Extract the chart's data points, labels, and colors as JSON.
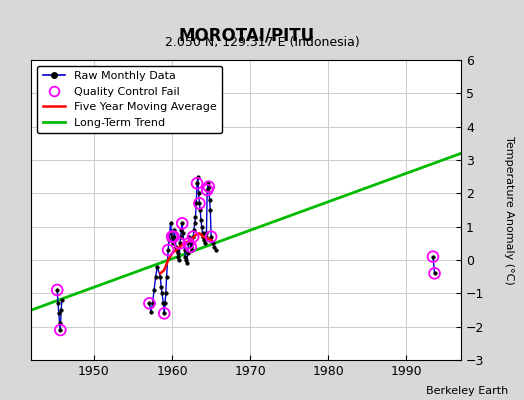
{
  "title": "MOROTAI/PITU",
  "subtitle": "2.050 N, 129.317 E (Indonesia)",
  "ylabel": "Temperature Anomaly (°C)",
  "credit": "Berkeley Earth",
  "xlim": [
    1942,
    1997
  ],
  "ylim": [
    -3,
    6
  ],
  "yticks": [
    -3,
    -2,
    -1,
    0,
    1,
    2,
    3,
    4,
    5,
    6
  ],
  "xticks": [
    1950,
    1960,
    1970,
    1980,
    1990
  ],
  "background_color": "#d8d8d8",
  "plot_bg_color": "#ffffff",
  "raw_data": [
    [
      1945.3,
      -0.9
    ],
    [
      1945.4,
      -1.3
    ],
    [
      1945.5,
      -1.6
    ],
    [
      1945.6,
      -1.9
    ],
    [
      1945.7,
      -2.1
    ],
    [
      1945.8,
      -1.5
    ],
    [
      1945.9,
      -1.2
    ],
    [
      1957.1,
      -1.3
    ],
    [
      1957.3,
      -1.55
    ],
    [
      1957.5,
      -1.3
    ],
    [
      1957.7,
      -0.9
    ],
    [
      1957.9,
      -0.5
    ],
    [
      1958.1,
      -0.2
    ],
    [
      1958.5,
      -0.5
    ],
    [
      1958.6,
      -0.8
    ],
    [
      1958.7,
      -1.0
    ],
    [
      1958.9,
      -1.3
    ],
    [
      1959.0,
      -1.6
    ],
    [
      1959.1,
      -1.3
    ],
    [
      1959.2,
      -1.0
    ],
    [
      1959.3,
      -0.5
    ],
    [
      1959.5,
      0.3
    ],
    [
      1959.6,
      0.6
    ],
    [
      1959.7,
      0.8
    ],
    [
      1959.8,
      1.1
    ],
    [
      1960.0,
      0.7
    ],
    [
      1960.1,
      0.5
    ],
    [
      1960.2,
      0.7
    ],
    [
      1960.3,
      0.9
    ],
    [
      1960.4,
      0.6
    ],
    [
      1960.5,
      0.4
    ],
    [
      1960.6,
      0.3
    ],
    [
      1960.7,
      0.2
    ],
    [
      1960.8,
      0.1
    ],
    [
      1960.9,
      0.0
    ],
    [
      1961.0,
      0.5
    ],
    [
      1961.1,
      0.7
    ],
    [
      1961.2,
      0.9
    ],
    [
      1961.3,
      1.1
    ],
    [
      1961.4,
      0.8
    ],
    [
      1961.5,
      0.5
    ],
    [
      1961.6,
      0.3
    ],
    [
      1961.7,
      0.1
    ],
    [
      1961.8,
      0.0
    ],
    [
      1961.9,
      -0.1
    ],
    [
      1962.0,
      0.2
    ],
    [
      1962.1,
      0.5
    ],
    [
      1962.2,
      0.7
    ],
    [
      1962.3,
      0.6
    ],
    [
      1962.4,
      0.4
    ],
    [
      1962.5,
      0.3
    ],
    [
      1962.6,
      0.5
    ],
    [
      1962.7,
      0.7
    ],
    [
      1962.8,
      0.9
    ],
    [
      1962.9,
      1.1
    ],
    [
      1963.0,
      1.3
    ],
    [
      1963.1,
      1.7
    ],
    [
      1963.2,
      2.3
    ],
    [
      1963.3,
      2.5
    ],
    [
      1963.4,
      2.0
    ],
    [
      1963.5,
      1.7
    ],
    [
      1963.6,
      1.5
    ],
    [
      1963.7,
      1.2
    ],
    [
      1963.8,
      1.0
    ],
    [
      1963.9,
      0.8
    ],
    [
      1964.0,
      0.7
    ],
    [
      1964.1,
      0.6
    ],
    [
      1964.2,
      0.5
    ],
    [
      1964.3,
      0.7
    ],
    [
      1964.4,
      0.8
    ],
    [
      1964.5,
      2.1
    ],
    [
      1964.6,
      2.3
    ],
    [
      1964.7,
      2.2
    ],
    [
      1964.8,
      1.8
    ],
    [
      1964.9,
      1.5
    ],
    [
      1965.0,
      0.7
    ],
    [
      1965.2,
      0.5
    ],
    [
      1965.4,
      0.4
    ],
    [
      1965.6,
      0.3
    ],
    [
      1993.4,
      0.1
    ],
    [
      1993.6,
      -0.4
    ]
  ],
  "qc_fail_data": [
    [
      1945.3,
      -0.9
    ],
    [
      1945.7,
      -2.1
    ],
    [
      1957.1,
      -1.3
    ],
    [
      1959.0,
      -1.6
    ],
    [
      1959.5,
      0.3
    ],
    [
      1960.0,
      0.7
    ],
    [
      1960.2,
      0.7
    ],
    [
      1961.0,
      0.5
    ],
    [
      1961.3,
      1.1
    ],
    [
      1962.1,
      0.5
    ],
    [
      1962.4,
      0.4
    ],
    [
      1962.7,
      0.7
    ],
    [
      1963.2,
      2.3
    ],
    [
      1963.5,
      1.7
    ],
    [
      1964.5,
      2.1
    ],
    [
      1964.7,
      2.2
    ],
    [
      1965.0,
      0.7
    ],
    [
      1993.4,
      0.1
    ],
    [
      1993.6,
      -0.4
    ]
  ],
  "moving_avg": [
    [
      1958.5,
      -0.4
    ],
    [
      1959.0,
      -0.3
    ],
    [
      1959.5,
      0.0
    ],
    [
      1960.0,
      0.2
    ],
    [
      1960.5,
      0.3
    ],
    [
      1961.0,
      0.4
    ],
    [
      1961.5,
      0.5
    ],
    [
      1962.0,
      0.55
    ],
    [
      1962.5,
      0.6
    ],
    [
      1963.0,
      0.75
    ],
    [
      1963.5,
      0.8
    ],
    [
      1964.0,
      0.7
    ],
    [
      1964.5,
      0.65
    ],
    [
      1965.0,
      0.6
    ]
  ],
  "trend_x": [
    1942,
    1997
  ],
  "trend_y": [
    -1.5,
    3.2
  ],
  "raw_color": "#0000cc",
  "raw_marker_color": "#000000",
  "qc_color": "#ff00ff",
  "mavg_color": "#ff0000",
  "trend_color": "#00bb00",
  "title_fontsize": 12,
  "subtitle_fontsize": 9,
  "label_fontsize": 8,
  "tick_fontsize": 9,
  "credit_fontsize": 8
}
